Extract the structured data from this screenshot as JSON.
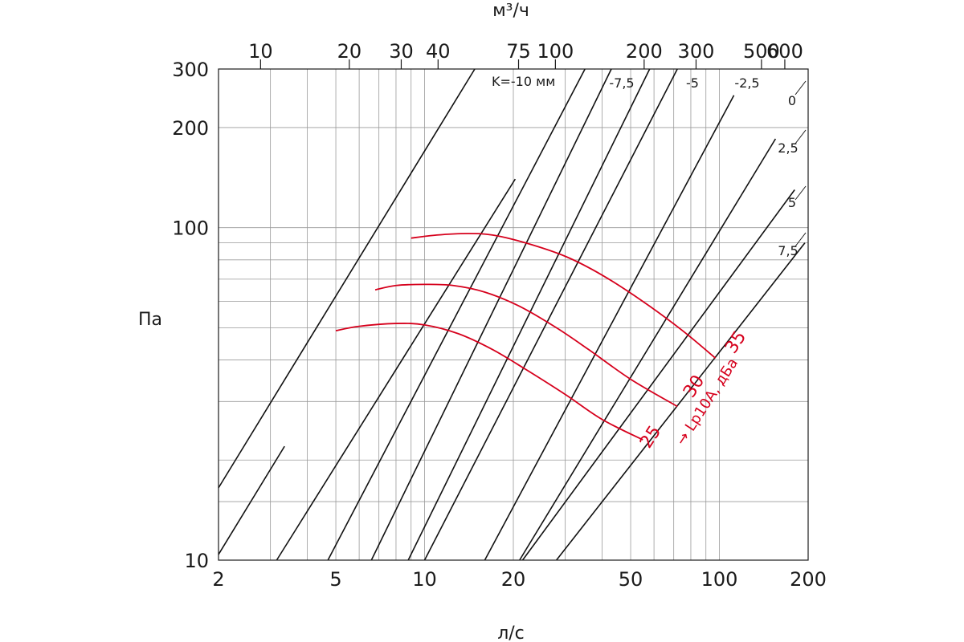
{
  "chart_data": {
    "type": "line",
    "x_bottom": {
      "label": "л/с",
      "scale": "log",
      "range": [
        2,
        200
      ],
      "ticks": [
        2,
        5,
        10,
        20,
        50,
        100,
        200
      ],
      "tick_labels": [
        "2",
        "5",
        "10",
        "20",
        "50",
        "100",
        "200"
      ],
      "minor_ticks": [
        3,
        4,
        6,
        7,
        8,
        9,
        30,
        40,
        60,
        70,
        80,
        90
      ]
    },
    "x_top": {
      "label": "м³/ч",
      "scale": "log",
      "ticks": [
        10,
        20,
        30,
        40,
        75,
        100,
        200,
        300,
        500,
        600
      ],
      "tick_labels": [
        "10",
        "20",
        "30",
        "40",
        "75",
        "100",
        "200",
        "300",
        "500",
        "600"
      ]
    },
    "y": {
      "label": "Па",
      "scale": "log",
      "range": [
        10,
        300
      ],
      "ticks": [
        10,
        100,
        200,
        300
      ],
      "tick_labels": [
        "10",
        "100",
        "200",
        "300"
      ],
      "minor_ticks": [
        15,
        20,
        30,
        40,
        50,
        60,
        70,
        80,
        90
      ]
    },
    "grid": true,
    "k_lines": {
      "unit_label": "K=-10 мм",
      "labels": [
        "-7,5",
        "-5",
        "-2,5",
        "0",
        "2,5",
        "5",
        "7,5"
      ],
      "series": [
        {
          "name": "K=-10 мм",
          "x": [
            2,
            14.8
          ],
          "y": [
            16.5,
            300
          ]
        },
        {
          "name": "",
          "x": [
            2,
            3.35
          ],
          "y": [
            10.4,
            22
          ]
        },
        {
          "name": "",
          "x": [
            3.15,
            20.3
          ],
          "y": [
            10,
            140
          ]
        },
        {
          "name": "-7,5",
          "x": [
            4.7,
            35
          ],
          "y": [
            10,
            300
          ]
        },
        {
          "name": "",
          "x": [
            6.6,
            43
          ],
          "y": [
            10,
            300
          ]
        },
        {
          "name": "-5",
          "x": [
            8.8,
            58
          ],
          "y": [
            10,
            300
          ]
        },
        {
          "name": "-2,5",
          "x": [
            10,
            72
          ],
          "y": [
            10,
            300
          ]
        },
        {
          "name": "0",
          "x": [
            16,
            112
          ],
          "y": [
            10,
            250
          ]
        },
        {
          "name": "2,5",
          "x": [
            21,
            155
          ],
          "y": [
            10,
            185
          ]
        },
        {
          "name": "5",
          "x": [
            21.5,
            180
          ],
          "y": [
            10,
            130
          ]
        },
        {
          "name": "7,5",
          "x": [
            28,
            195
          ],
          "y": [
            10,
            90
          ]
        }
      ]
    },
    "sound_curves": {
      "title": "→ Lp10A, дБа",
      "series": [
        {
          "name": "25",
          "x": [
            5,
            6,
            8,
            10,
            13,
            17,
            22,
            30,
            40,
            55
          ],
          "y": [
            49,
            50.5,
            51.5,
            51,
            48,
            43,
            37.5,
            31.5,
            26.5,
            23
          ]
        },
        {
          "name": "30",
          "x": [
            6.8,
            8,
            10,
            12.5,
            16,
            21,
            28,
            36,
            50,
            72
          ],
          "y": [
            65,
            67,
            67.5,
            67,
            64,
            58,
            50,
            43,
            35,
            29
          ]
        },
        {
          "name": "35",
          "x": [
            9,
            11,
            14,
            17,
            22,
            30,
            40,
            55,
            75,
            97
          ],
          "y": [
            93,
            95,
            96,
            95,
            90,
            82,
            72,
            60,
            49,
            40.5
          ]
        }
      ]
    }
  }
}
